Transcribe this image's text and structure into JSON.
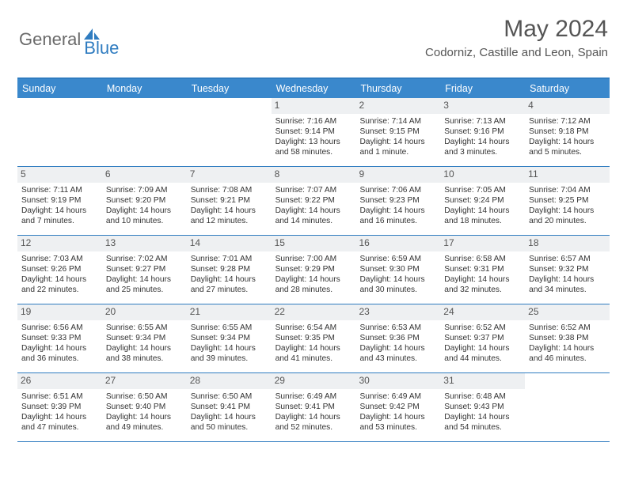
{
  "brand": {
    "part1": "General",
    "part2": "Blue"
  },
  "title": "May 2024",
  "location": "Codorniz, Castille and Leon, Spain",
  "colors": {
    "header_bar": "#3a88cc",
    "rule": "#2f7cc0",
    "daynum_bg": "#eef0f2",
    "logo_accent": "#2f7cc0",
    "logo_gray": "#6a6a6a"
  },
  "weekdays": [
    "Sunday",
    "Monday",
    "Tuesday",
    "Wednesday",
    "Thursday",
    "Friday",
    "Saturday"
  ],
  "first_weekday_index": 3,
  "days": [
    {
      "n": 1,
      "sr": "7:16 AM",
      "ss": "9:14 PM",
      "dl": "13 hours and 58 minutes."
    },
    {
      "n": 2,
      "sr": "7:14 AM",
      "ss": "9:15 PM",
      "dl": "14 hours and 1 minute."
    },
    {
      "n": 3,
      "sr": "7:13 AM",
      "ss": "9:16 PM",
      "dl": "14 hours and 3 minutes."
    },
    {
      "n": 4,
      "sr": "7:12 AM",
      "ss": "9:18 PM",
      "dl": "14 hours and 5 minutes."
    },
    {
      "n": 5,
      "sr": "7:11 AM",
      "ss": "9:19 PM",
      "dl": "14 hours and 7 minutes."
    },
    {
      "n": 6,
      "sr": "7:09 AM",
      "ss": "9:20 PM",
      "dl": "14 hours and 10 minutes."
    },
    {
      "n": 7,
      "sr": "7:08 AM",
      "ss": "9:21 PM",
      "dl": "14 hours and 12 minutes."
    },
    {
      "n": 8,
      "sr": "7:07 AM",
      "ss": "9:22 PM",
      "dl": "14 hours and 14 minutes."
    },
    {
      "n": 9,
      "sr": "7:06 AM",
      "ss": "9:23 PM",
      "dl": "14 hours and 16 minutes."
    },
    {
      "n": 10,
      "sr": "7:05 AM",
      "ss": "9:24 PM",
      "dl": "14 hours and 18 minutes."
    },
    {
      "n": 11,
      "sr": "7:04 AM",
      "ss": "9:25 PM",
      "dl": "14 hours and 20 minutes."
    },
    {
      "n": 12,
      "sr": "7:03 AM",
      "ss": "9:26 PM",
      "dl": "14 hours and 22 minutes."
    },
    {
      "n": 13,
      "sr": "7:02 AM",
      "ss": "9:27 PM",
      "dl": "14 hours and 25 minutes."
    },
    {
      "n": 14,
      "sr": "7:01 AM",
      "ss": "9:28 PM",
      "dl": "14 hours and 27 minutes."
    },
    {
      "n": 15,
      "sr": "7:00 AM",
      "ss": "9:29 PM",
      "dl": "14 hours and 28 minutes."
    },
    {
      "n": 16,
      "sr": "6:59 AM",
      "ss": "9:30 PM",
      "dl": "14 hours and 30 minutes."
    },
    {
      "n": 17,
      "sr": "6:58 AM",
      "ss": "9:31 PM",
      "dl": "14 hours and 32 minutes."
    },
    {
      "n": 18,
      "sr": "6:57 AM",
      "ss": "9:32 PM",
      "dl": "14 hours and 34 minutes."
    },
    {
      "n": 19,
      "sr": "6:56 AM",
      "ss": "9:33 PM",
      "dl": "14 hours and 36 minutes."
    },
    {
      "n": 20,
      "sr": "6:55 AM",
      "ss": "9:34 PM",
      "dl": "14 hours and 38 minutes."
    },
    {
      "n": 21,
      "sr": "6:55 AM",
      "ss": "9:34 PM",
      "dl": "14 hours and 39 minutes."
    },
    {
      "n": 22,
      "sr": "6:54 AM",
      "ss": "9:35 PM",
      "dl": "14 hours and 41 minutes."
    },
    {
      "n": 23,
      "sr": "6:53 AM",
      "ss": "9:36 PM",
      "dl": "14 hours and 43 minutes."
    },
    {
      "n": 24,
      "sr": "6:52 AM",
      "ss": "9:37 PM",
      "dl": "14 hours and 44 minutes."
    },
    {
      "n": 25,
      "sr": "6:52 AM",
      "ss": "9:38 PM",
      "dl": "14 hours and 46 minutes."
    },
    {
      "n": 26,
      "sr": "6:51 AM",
      "ss": "9:39 PM",
      "dl": "14 hours and 47 minutes."
    },
    {
      "n": 27,
      "sr": "6:50 AM",
      "ss": "9:40 PM",
      "dl": "14 hours and 49 minutes."
    },
    {
      "n": 28,
      "sr": "6:50 AM",
      "ss": "9:41 PM",
      "dl": "14 hours and 50 minutes."
    },
    {
      "n": 29,
      "sr": "6:49 AM",
      "ss": "9:41 PM",
      "dl": "14 hours and 52 minutes."
    },
    {
      "n": 30,
      "sr": "6:49 AM",
      "ss": "9:42 PM",
      "dl": "14 hours and 53 minutes."
    },
    {
      "n": 31,
      "sr": "6:48 AM",
      "ss": "9:43 PM",
      "dl": "14 hours and 54 minutes."
    }
  ],
  "labels": {
    "sunrise": "Sunrise: ",
    "sunset": "Sunset: ",
    "daylight": "Daylight: "
  }
}
